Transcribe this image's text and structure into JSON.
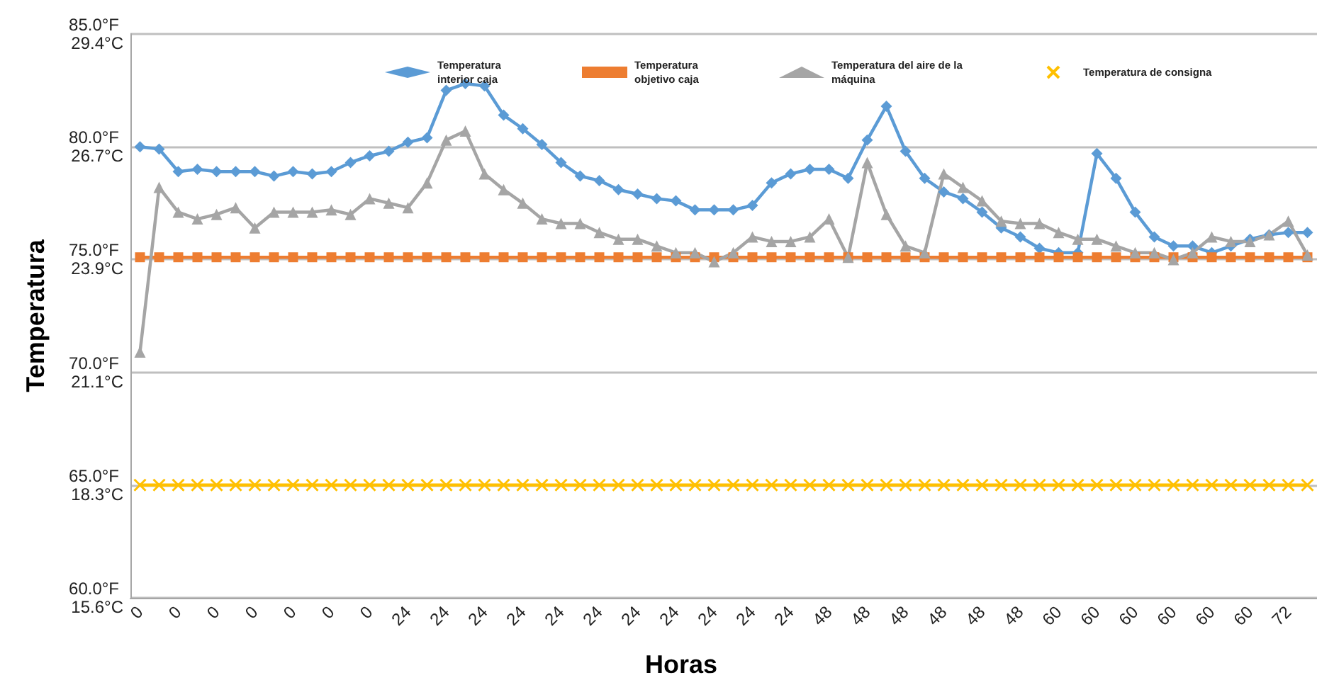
{
  "chart_data": {
    "type": "line",
    "xlabel": "Horas",
    "ylabel": "Temperatura",
    "categories": [
      "0",
      null,
      "0",
      null,
      "0",
      null,
      "0",
      null,
      "0",
      null,
      "0",
      null,
      "0",
      null,
      "24",
      null,
      "24",
      null,
      "24",
      null,
      "24",
      null,
      "24",
      null,
      "24",
      null,
      "24",
      null,
      "24",
      null,
      "24",
      null,
      "24",
      null,
      "24",
      null,
      "48",
      null,
      "48",
      null,
      "48",
      null,
      "48",
      null,
      "48",
      null,
      "48",
      null,
      "60",
      null,
      "60",
      null,
      "60",
      null,
      "60",
      null,
      "60",
      null,
      "60",
      null,
      "72",
      null
    ],
    "series": [
      {
        "name": "Temperatura interior caja",
        "color": "#5b9bd5",
        "marker": "diamond",
        "values": [
          80.0,
          79.9,
          78.9,
          79.0,
          78.9,
          78.9,
          78.9,
          78.7,
          78.9,
          78.8,
          78.9,
          79.3,
          79.6,
          79.8,
          80.2,
          80.4,
          82.5,
          82.8,
          82.7,
          81.4,
          80.8,
          80.1,
          79.3,
          78.7,
          78.5,
          78.1,
          77.9,
          77.7,
          77.6,
          77.2,
          77.2,
          77.2,
          77.4,
          78.4,
          78.8,
          79.0,
          79.0,
          78.6,
          80.3,
          81.8,
          79.8,
          78.6,
          78.0,
          77.7,
          77.1,
          76.4,
          76.0,
          75.5,
          75.3,
          75.3,
          79.7,
          78.6,
          77.1,
          76.0,
          75.6,
          75.6,
          75.3,
          75.6,
          75.9,
          76.1,
          76.2,
          76.2
        ]
      },
      {
        "name": "Temperatura objetivo caja",
        "color": "#ed7d31",
        "marker": "square",
        "values": [
          75.1,
          75.1,
          75.1,
          75.1,
          75.1,
          75.1,
          75.1,
          75.1,
          75.1,
          75.1,
          75.1,
          75.1,
          75.1,
          75.1,
          75.1,
          75.1,
          75.1,
          75.1,
          75.1,
          75.1,
          75.1,
          75.1,
          75.1,
          75.1,
          75.1,
          75.1,
          75.1,
          75.1,
          75.1,
          75.1,
          75.1,
          75.1,
          75.1,
          75.1,
          75.1,
          75.1,
          75.1,
          75.1,
          75.1,
          75.1,
          75.1,
          75.1,
          75.1,
          75.1,
          75.1,
          75.1,
          75.1,
          75.1,
          75.1,
          75.1,
          75.1,
          75.1,
          75.1,
          75.1,
          75.1,
          75.1,
          75.1,
          75.1,
          75.1,
          75.1,
          75.1,
          75.1
        ]
      },
      {
        "name": "Temperatura del aire de la máquina",
        "color": "#a5a5a5",
        "marker": "triangle",
        "values": [
          70.9,
          78.2,
          77.1,
          76.8,
          77.0,
          77.3,
          76.4,
          77.1,
          77.1,
          77.1,
          77.2,
          77.0,
          77.7,
          77.5,
          77.3,
          78.4,
          80.3,
          80.7,
          78.8,
          78.1,
          77.5,
          76.8,
          76.6,
          76.6,
          76.2,
          75.9,
          75.9,
          75.6,
          75.3,
          75.3,
          74.9,
          75.3,
          76.0,
          75.8,
          75.8,
          76.0,
          76.8,
          75.1,
          79.3,
          77.0,
          75.6,
          75.3,
          78.8,
          78.2,
          77.6,
          76.7,
          76.6,
          76.6,
          76.2,
          75.9,
          75.9,
          75.6,
          75.3,
          75.3,
          75.0,
          75.3,
          76.0,
          75.8,
          75.8,
          76.1,
          76.7,
          75.2
        ]
      },
      {
        "name": "Temperatura de consigna",
        "color": "#ffc000",
        "marker": "cross",
        "values": [
          65.0,
          65.0,
          65.0,
          65.0,
          65.0,
          65.0,
          65.0,
          65.0,
          65.0,
          65.0,
          65.0,
          65.0,
          65.0,
          65.0,
          65.0,
          65.0,
          65.0,
          65.0,
          65.0,
          65.0,
          65.0,
          65.0,
          65.0,
          65.0,
          65.0,
          65.0,
          65.0,
          65.0,
          65.0,
          65.0,
          65.0,
          65.0,
          65.0,
          65.0,
          65.0,
          65.0,
          65.0,
          65.0,
          65.0,
          65.0,
          65.0,
          65.0,
          65.0,
          65.0,
          65.0,
          65.0,
          65.0,
          65.0,
          65.0,
          65.0,
          65.0,
          65.0,
          65.0,
          65.0,
          65.0,
          65.0,
          65.0,
          65.0,
          65.0,
          65.0,
          65.0,
          65.0
        ]
      }
    ],
    "ylim": [
      60,
      85
    ],
    "yticks": [
      {
        "value": 60,
        "label": "60.0°F"
      },
      {
        "value": 65,
        "label": "65.0°F"
      },
      {
        "value": 70,
        "label": "70.0°F"
      },
      {
        "value": 75,
        "label": "75.0°F"
      },
      {
        "value": 80,
        "label": "80.0°F"
      },
      {
        "value": 85,
        "label": "85.0°F"
      }
    ],
    "y2lim": [
      15.556,
      29.444
    ],
    "y2ticks": [
      {
        "value": 15.556,
        "label": "15.6°C"
      },
      {
        "value": 18.333,
        "label": "18.3°C"
      },
      {
        "value": 21.111,
        "label": "21.1°C"
      },
      {
        "value": 23.889,
        "label": "23.9°C"
      },
      {
        "value": 26.667,
        "label": "26.7°C"
      },
      {
        "value": 29.444,
        "label": "29.4°C"
      }
    ],
    "grid": "y",
    "legend": "top right",
    "line_style": "solid"
  }
}
